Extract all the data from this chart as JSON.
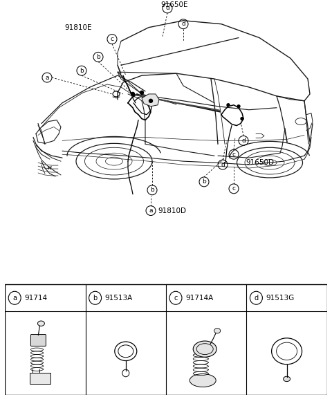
{
  "bg_color": "#ffffff",
  "fig_width": 4.8,
  "fig_height": 5.74,
  "dpi": 100,
  "top_label": "91650E",
  "left_label": "91810E",
  "bottom_left_label": "91810D",
  "right_label": "91650D",
  "parts": [
    {
      "letter": "a",
      "part_num": "91714"
    },
    {
      "letter": "b",
      "part_num": "91513A"
    },
    {
      "letter": "c",
      "part_num": "91714A"
    },
    {
      "letter": "d",
      "part_num": "91513G"
    }
  ],
  "callout_circle_r": 7,
  "callout_fontsize": 6.5,
  "label_fontsize": 7.5,
  "lc": "#1a1a1a",
  "lw": 0.8
}
